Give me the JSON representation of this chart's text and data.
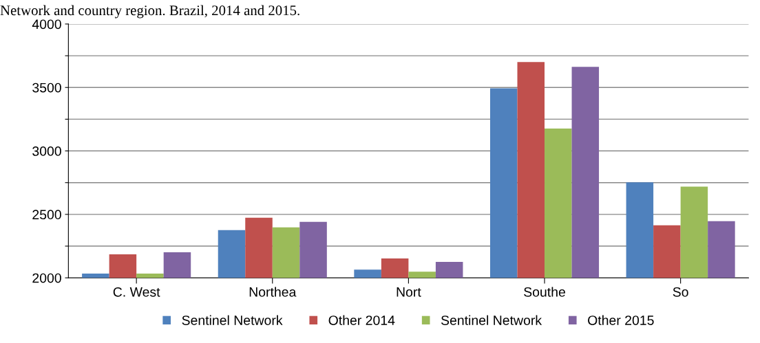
{
  "chart_data": {
    "type": "bar",
    "title": "Network and country region. Brazil, 2014 and 2015.",
    "categories": [
      "C. West",
      "Northea",
      "Nort",
      "Southe",
      "So"
    ],
    "series": [
      {
        "name": "Sentinel Network",
        "color": "#4f81bd",
        "values": [
          2033,
          2376,
          2065,
          3493,
          2752
        ]
      },
      {
        "name": "Other 2014",
        "color": "#c0504d",
        "values": [
          2185,
          2474,
          2153,
          3700,
          2414
        ]
      },
      {
        "name": "Sentinel Network",
        "color": "#9bbb59",
        "values": [
          2033,
          2398,
          2049,
          3177,
          2719
        ]
      },
      {
        "name": "Other 2015",
        "color": "#8064a2",
        "values": [
          2202,
          2441,
          2125,
          3662,
          2447
        ]
      }
    ],
    "ylim": [
      2000,
      4000
    ],
    "yticks": [
      2000,
      {
        "value": 2250,
        "label": null
      },
      2500,
      {
        "value": 2750,
        "label": null
      },
      3000,
      {
        "value": 3250,
        "label": null
      },
      3500,
      {
        "value": 3750,
        "label": null
      },
      4000
    ],
    "grid": "y",
    "legend": "bottom"
  }
}
